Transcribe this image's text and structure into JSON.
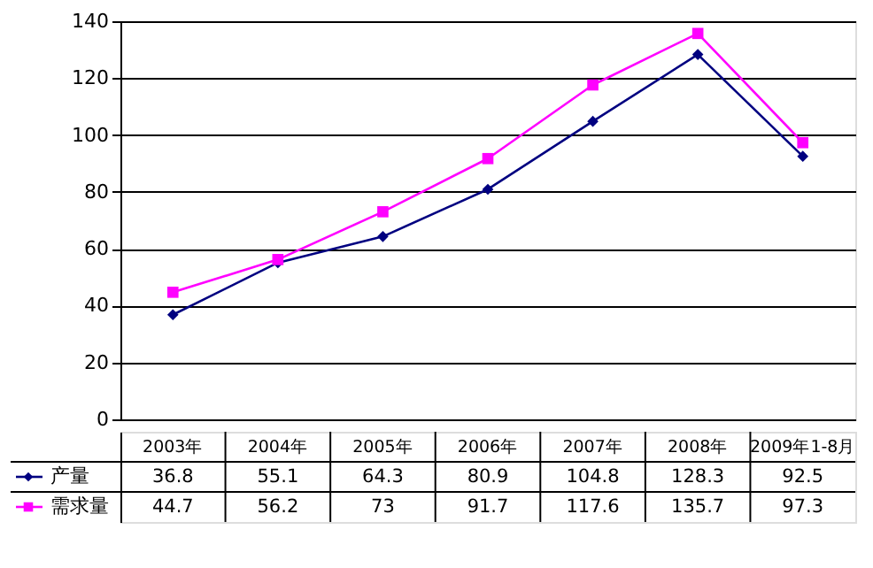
{
  "chart_data": {
    "type": "line",
    "categories": [
      "2003年",
      "2004年",
      "2005年",
      "2006年",
      "2007年",
      "2008年",
      "2009年1-8月"
    ],
    "series": [
      {
        "name": "产量",
        "color": "#000080",
        "marker": "diamond",
        "values": [
          36.8,
          55.1,
          64.3,
          80.9,
          104.8,
          128.3,
          92.5
        ]
      },
      {
        "name": "需求量",
        "color": "#ff00ff",
        "marker": "square",
        "values": [
          44.7,
          56.2,
          73,
          91.7,
          117.6,
          135.7,
          97.3
        ]
      }
    ],
    "ylim": [
      0,
      140
    ],
    "yticks": [
      0,
      20,
      40,
      60,
      80,
      100,
      120,
      140
    ],
    "grid": "y",
    "legend": "bottom left",
    "data_labels": true
  }
}
